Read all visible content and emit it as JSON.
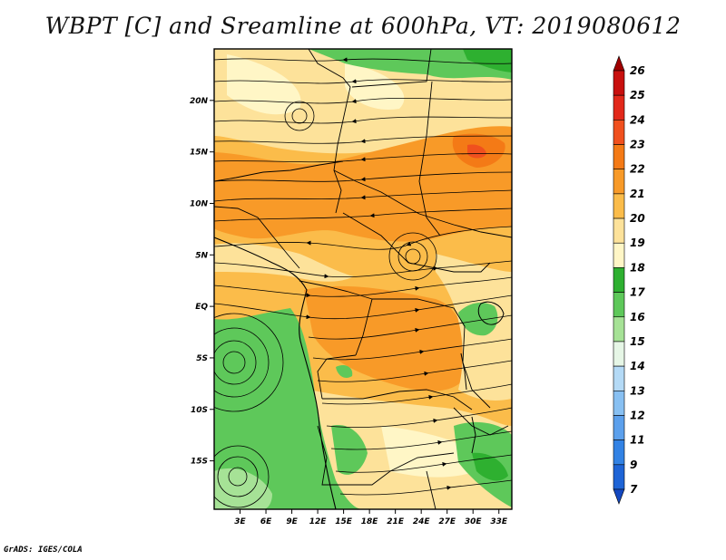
{
  "title": "WBPT [C] and Sreamline at 600hPa, VT: 2019080612",
  "credit": "GrADS: IGES/COLA",
  "map": {
    "lat_labels": [
      "20N",
      "15N",
      "10N",
      "5N",
      "EQ",
      "5S",
      "10S",
      "15S"
    ],
    "lat_values": [
      20,
      15,
      10,
      5,
      0,
      -5,
      -10,
      -15
    ],
    "lon_labels": [
      "3E",
      "6E",
      "9E",
      "12E",
      "15E",
      "18E",
      "21E",
      "24E",
      "27E",
      "30E",
      "33E"
    ],
    "lon_values": [
      3,
      6,
      9,
      12,
      15,
      18,
      21,
      24,
      27,
      30,
      33
    ],
    "lat_range": [
      -19.7,
      25
    ],
    "lon_range": [
      0,
      34.5
    ]
  },
  "colorbar": {
    "labels": [
      "26",
      "25",
      "24",
      "23",
      "22",
      "21",
      "20",
      "19",
      "18",
      "17",
      "16",
      "15",
      "14",
      "13",
      "12",
      "11",
      "9",
      "7"
    ],
    "colors": [
      "#a00000",
      "#c8100e",
      "#e2281a",
      "#f0501e",
      "#f47a16",
      "#f89a28",
      "#fbbc4a",
      "#fde29a",
      "#fff6c6",
      "#2eb030",
      "#5ec85a",
      "#a6e296",
      "#e6f6e6",
      "#b4daf6",
      "#88c0f2",
      "#5ca0ec",
      "#3282e4",
      "#1e64d6",
      "#1448c0"
    ]
  }
}
